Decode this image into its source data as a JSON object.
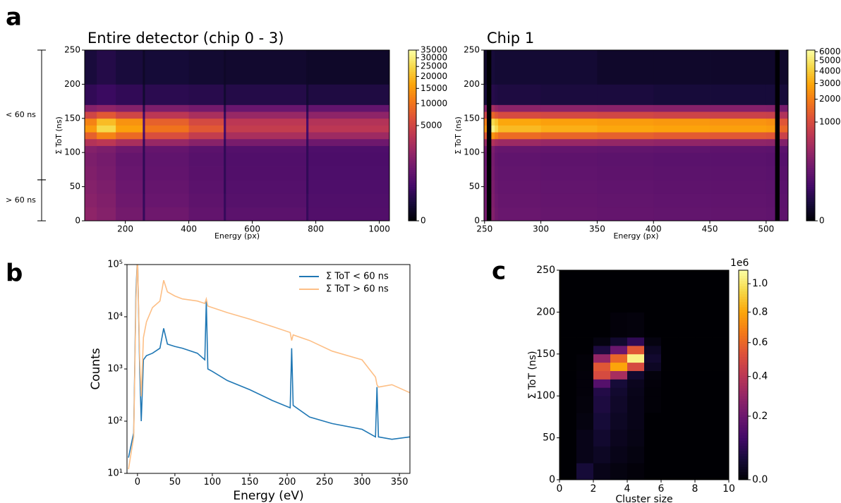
{
  "panel_labels": [
    "a",
    "b",
    "c"
  ],
  "chart_data": [
    {
      "type": "heatmap",
      "title": "Entire detector (chip 0 - 3)",
      "x_label": "Energy (px)",
      "y_label": "Σ ToT (ns)",
      "xlim": [
        72,
        1032
      ],
      "ylim": [
        0,
        250
      ],
      "xticks": [
        200,
        400,
        600,
        800,
        1000
      ],
      "yticks": [
        0,
        50,
        100,
        150,
        200,
        250
      ],
      "colormap": "inferno",
      "color_gamma": 0.3,
      "zlim": [
        0,
        35000
      ],
      "zticks": [
        0,
        5000,
        10000,
        15000,
        20000,
        25000,
        30000,
        35000
      ],
      "annotations": [
        {
          "text": "< 60 ns",
          "y_range": [
            60,
            250
          ]
        },
        {
          "text": "> 60 ns",
          "y_range": [
            0,
            60
          ]
        }
      ],
      "x_edges": [
        72,
        110,
        170,
        255,
        262,
        400,
        510,
        517,
        770,
        777,
        1032
      ],
      "y_edges": [
        0,
        20,
        40,
        60,
        80,
        100,
        110,
        120,
        130,
        140,
        150,
        160,
        170,
        200,
        250
      ],
      "z": [
        [
          1500,
          1200,
          800,
          100,
          700,
          500,
          100,
          400,
          100,
          300
        ],
        [
          1300,
          1100,
          700,
          100,
          600,
          450,
          100,
          350,
          100,
          280
        ],
        [
          1200,
          1000,
          650,
          80,
          550,
          400,
          80,
          320,
          80,
          260
        ],
        [
          1100,
          900,
          600,
          80,
          500,
          380,
          80,
          300,
          80,
          250
        ],
        [
          1000,
          850,
          550,
          80,
          480,
          360,
          80,
          290,
          80,
          240
        ],
        [
          1200,
          1000,
          700,
          80,
          550,
          400,
          80,
          320,
          80,
          260
        ],
        [
          3000,
          3500,
          2500,
          100,
          1800,
          1300,
          100,
          900,
          100,
          700
        ],
        [
          8000,
          12000,
          9000,
          200,
          6000,
          4000,
          150,
          2500,
          150,
          2000
        ],
        [
          15000,
          25000,
          16000,
          300,
          10000,
          7000,
          200,
          4000,
          200,
          3500
        ],
        [
          12000,
          20000,
          14000,
          300,
          8000,
          5500,
          200,
          3500,
          200,
          3000
        ],
        [
          5000,
          7000,
          5000,
          150,
          3500,
          2500,
          100,
          1800,
          100,
          1500
        ],
        [
          1200,
          1500,
          1200,
          50,
          1000,
          800,
          50,
          600,
          50,
          500
        ],
        [
          80,
          120,
          80,
          10,
          60,
          50,
          10,
          40,
          10,
          30
        ],
        [
          20,
          40,
          20,
          5,
          15,
          10,
          5,
          8,
          5,
          5
        ]
      ]
    },
    {
      "type": "heatmap",
      "title": "Chip 1",
      "x_label": "Energy (px)",
      "y_label": "Σ ToT (ns)",
      "xlim": [
        249.5,
        519.5
      ],
      "ylim": [
        0,
        250
      ],
      "xticks": [
        250,
        300,
        350,
        400,
        450,
        500
      ],
      "yticks": [
        0,
        50,
        100,
        150,
        200,
        250
      ],
      "colormap": "inferno",
      "color_gamma": 0.3,
      "zlim": [
        0,
        6200
      ],
      "zticks": [
        0,
        1000,
        2000,
        3000,
        4000,
        5000,
        6000
      ],
      "x_edges": [
        249.5,
        252,
        256,
        259,
        262,
        300,
        350,
        400,
        450,
        500,
        508,
        512,
        519.5
      ],
      "y_edges": [
        0,
        20,
        40,
        60,
        80,
        100,
        110,
        120,
        130,
        140,
        150,
        160,
        170,
        200,
        250
      ],
      "z": [
        [
          150,
          0,
          200,
          130,
          110,
          100,
          95,
          90,
          90,
          85,
          0,
          80
        ],
        [
          140,
          0,
          180,
          120,
          100,
          95,
          90,
          85,
          85,
          80,
          0,
          75
        ],
        [
          130,
          0,
          170,
          110,
          95,
          90,
          85,
          80,
          80,
          75,
          0,
          70
        ],
        [
          120,
          0,
          160,
          100,
          90,
          85,
          80,
          75,
          75,
          70,
          0,
          65
        ],
        [
          110,
          0,
          150,
          95,
          85,
          80,
          75,
          70,
          70,
          65,
          0,
          60
        ],
        [
          130,
          0,
          170,
          110,
          100,
          95,
          90,
          85,
          80,
          75,
          0,
          70
        ],
        [
          300,
          0,
          500,
          400,
          350,
          320,
          300,
          280,
          270,
          260,
          0,
          200
        ],
        [
          1200,
          0,
          2500,
          2000,
          1600,
          1500,
          1400,
          1300,
          1250,
          1200,
          0,
          800
        ],
        [
          2500,
          0,
          5500,
          4500,
          3500,
          3200,
          3000,
          2900,
          2800,
          2700,
          0,
          1500
        ],
        [
          2000,
          0,
          4500,
          3800,
          3000,
          2800,
          2700,
          2600,
          2500,
          2400,
          0,
          1200
        ],
        [
          800,
          0,
          1500,
          1200,
          1000,
          950,
          900,
          850,
          800,
          780,
          0,
          500
        ],
        [
          200,
          0,
          400,
          300,
          250,
          240,
          230,
          220,
          210,
          200,
          0,
          150
        ],
        [
          3,
          0,
          8,
          6,
          5,
          4,
          4,
          3,
          3,
          3,
          0,
          3
        ],
        [
          1,
          0,
          3,
          2,
          2,
          2,
          1,
          1,
          1,
          1,
          0,
          1
        ]
      ]
    },
    {
      "type": "line",
      "x_label": "Energy (eV)",
      "y_label": "Counts",
      "log_y": true,
      "legend": "upper right",
      "xlim": [
        -14,
        364
      ],
      "ylim": [
        10,
        100000
      ],
      "xticks": [
        0,
        50,
        100,
        150,
        200,
        250,
        300,
        350
      ],
      "yticks": [
        {
          "value": 10,
          "label": "10¹"
        },
        {
          "value": 100,
          "label": "10²"
        },
        {
          "value": 1000,
          "label": "10³"
        },
        {
          "value": 10000,
          "label": "10⁴"
        },
        {
          "value": 100000,
          "label": "10⁵"
        }
      ],
      "x": [
        -12,
        -5,
        -2,
        0,
        3,
        5,
        8,
        12,
        20,
        30,
        35,
        40,
        50,
        60,
        80,
        90,
        92,
        94,
        100,
        120,
        150,
        180,
        204,
        206,
        208,
        230,
        260,
        300,
        318,
        320,
        322,
        340,
        364
      ],
      "series": [
        {
          "name": "Σ ToT < 60 ns",
          "color": "#1f77b4",
          "values": [
            20,
            60,
            30000,
            150000,
            1000,
            100,
            1500,
            1800,
            2000,
            2500,
            6000,
            3000,
            2700,
            2500,
            2000,
            1500,
            20000,
            1000,
            900,
            600,
            400,
            250,
            180,
            2500,
            200,
            120,
            90,
            70,
            50,
            450,
            50,
            45,
            50
          ]
        },
        {
          "name": "Σ ToT > 60 ns",
          "color": "#fdbf86",
          "values": [
            12,
            50,
            20000,
            150000,
            1500,
            300,
            4000,
            8000,
            15000,
            20000,
            50000,
            30000,
            25000,
            22000,
            20000,
            18000,
            22000,
            16000,
            15000,
            12000,
            9000,
            6500,
            5000,
            3500,
            4500,
            3500,
            2200,
            1500,
            700,
            500,
            450,
            500,
            350
          ]
        }
      ]
    },
    {
      "type": "heatmap",
      "x_label": "Cluster size",
      "y_label": "Σ ToT (ns)",
      "xlim": [
        0,
        10
      ],
      "ylim": [
        0,
        250
      ],
      "xticks": [
        0,
        2,
        4,
        6,
        8,
        10
      ],
      "yticks": [
        0,
        50,
        100,
        150,
        200,
        250
      ],
      "colormap": "inferno",
      "color_gamma": 0.7,
      "zlim": [
        0,
        1.1
      ],
      "cbar_offset": "1e6",
      "zticks": [
        {
          "value": 0,
          "label": "0.0"
        },
        {
          "value": 0.2,
          "label": "0.2"
        },
        {
          "value": 0.4,
          "label": "0.4"
        },
        {
          "value": 0.6,
          "label": "0.6"
        },
        {
          "value": 0.8,
          "label": "0.8"
        },
        {
          "value": 1,
          "label": "1.0"
        }
      ],
      "x_edges": [
        0,
        1,
        2,
        3,
        4,
        5,
        6,
        7,
        8,
        9,
        10
      ],
      "y_edges": [
        0,
        20,
        40,
        60,
        80,
        100,
        110,
        120,
        130,
        140,
        150,
        160,
        170,
        200,
        250
      ],
      "z": [
        [
          0,
          0.04,
          0.01,
          0.005,
          0.002,
          0,
          0,
          0,
          0,
          0
        ],
        [
          0,
          0.01,
          0.02,
          0.01,
          0.005,
          0,
          0,
          0,
          0,
          0
        ],
        [
          0,
          0.01,
          0.03,
          0.015,
          0.008,
          0,
          0,
          0,
          0,
          0
        ],
        [
          0,
          0.005,
          0.04,
          0.02,
          0.01,
          0,
          0,
          0,
          0,
          0
        ],
        [
          0,
          0.003,
          0.05,
          0.025,
          0.01,
          0.001,
          0,
          0,
          0,
          0
        ],
        [
          0,
          0.002,
          0.06,
          0.03,
          0.012,
          0.001,
          0,
          0,
          0,
          0
        ],
        [
          0,
          0.002,
          0.15,
          0.04,
          0.015,
          0.002,
          0,
          0,
          0,
          0
        ],
        [
          0,
          0.002,
          0.5,
          0.35,
          0.03,
          0.003,
          0,
          0,
          0,
          0
        ],
        [
          0,
          0.001,
          0.55,
          0.8,
          0.5,
          0.02,
          0,
          0,
          0,
          0
        ],
        [
          0,
          0.001,
          0.3,
          0.6,
          1.05,
          0.03,
          0,
          0,
          0,
          0
        ],
        [
          0,
          0,
          0.05,
          0.2,
          0.55,
          0.02,
          0,
          0,
          0,
          0
        ],
        [
          0,
          0,
          0.005,
          0.03,
          0.08,
          0.005,
          0,
          0,
          0,
          0
        ],
        [
          0,
          0,
          0,
          0.002,
          0.003,
          0,
          0,
          0,
          0,
          0
        ],
        [
          0,
          0,
          0,
          0,
          0,
          0,
          0,
          0,
          0,
          0
        ]
      ]
    }
  ]
}
